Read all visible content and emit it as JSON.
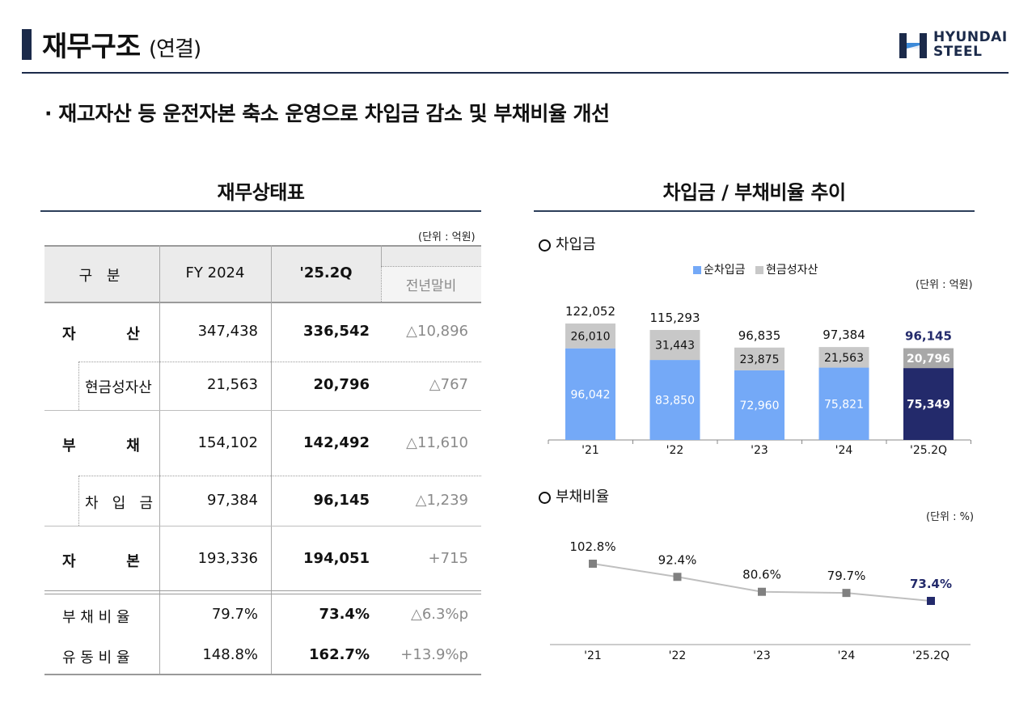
{
  "header": {
    "title": "재무구조",
    "title_sub": "(연결)",
    "logo_line1": "HYUNDAI",
    "logo_line2": "STEEL"
  },
  "headline": "· 재고자산 등 운전자본 축소 운영으로 차입금 감소 및 부채비율 개선",
  "balance_sheet": {
    "title": "재무상태표",
    "unit": "(단위 : 억원)",
    "columns": [
      "구  분",
      "FY 2024",
      "'25.2Q",
      "전년말비"
    ],
    "rows": [
      {
        "label": "자          산",
        "fy2024": "347,438",
        "q": "336,542",
        "diff": "△10,896"
      },
      {
        "label": "현금성자산",
        "fy2024": "21,563",
        "q": "20,796",
        "diff": "△767"
      },
      {
        "label": "부          채",
        "fy2024": "154,102",
        "q": "142,492",
        "diff": "△11,610"
      },
      {
        "label": "차   입   금",
        "fy2024": "97,384",
        "q": "96,145",
        "diff": "△1,239"
      },
      {
        "label": "자          본",
        "fy2024": "193,336",
        "q": "194,051",
        "diff": "+715"
      },
      {
        "label": "부 채 비 율",
        "fy2024": "79.7%",
        "q": "73.4%",
        "diff": "△6.3%p"
      },
      {
        "label": "유 동 비 율",
        "fy2024": "148.8%",
        "q": "162.7%",
        "diff": "+13.9%p"
      }
    ]
  },
  "charts_panel": {
    "title": "차입금 / 부채비율 추이",
    "borrowings_heading": "차입금",
    "debt_ratio_heading": "부채비율",
    "unit_krw": "(단위 : 억원)",
    "unit_pct": "(단위 : %)"
  },
  "colors": {
    "net_debt": "#74a9f7",
    "cash": "#c8c8c8",
    "highlight": "#232a6b",
    "line": "#bfbfbf",
    "marker": "#808080",
    "navy": "#1b2a4a"
  },
  "chart_data": [
    {
      "type": "bar",
      "stacked": true,
      "categories": [
        "'21",
        "'22",
        "'23",
        "'24",
        "'25.2Q"
      ],
      "series": [
        {
          "name": "순차입금",
          "values": [
            96042,
            83850,
            72960,
            75821,
            75349
          ]
        },
        {
          "name": "현금성자산",
          "values": [
            26010,
            31443,
            23875,
            21563,
            20796
          ]
        }
      ],
      "totals": [
        122052,
        115293,
        96835,
        97384,
        96145
      ],
      "labels": {
        "net": [
          "96,042",
          "83,850",
          "72,960",
          "75,821",
          "75,349"
        ],
        "cash": [
          "26,010",
          "31,443",
          "23,875",
          "21,563",
          "20,796"
        ],
        "total": [
          "122,052",
          "115,293",
          "96,835",
          "97,384",
          "96,145"
        ]
      },
      "legend_position": "top",
      "highlight_index": 4
    },
    {
      "type": "line",
      "categories": [
        "'21",
        "'22",
        "'23",
        "'24",
        "'25.2Q"
      ],
      "values": [
        102.8,
        92.4,
        80.6,
        79.7,
        73.4
      ],
      "labels": [
        "102.8%",
        "92.4%",
        "80.6%",
        "79.7%",
        "73.4%"
      ],
      "highlight_index": 4
    }
  ]
}
